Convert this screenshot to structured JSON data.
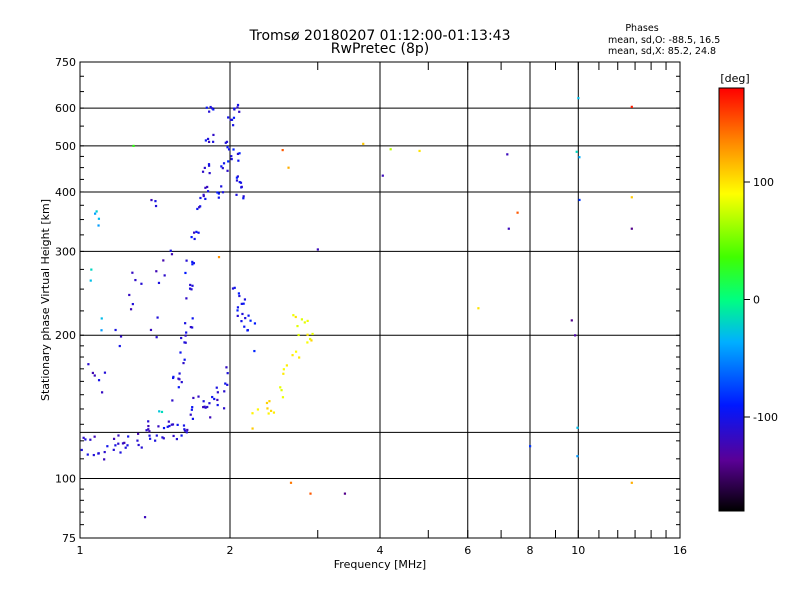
{
  "chart_data": {
    "type": "scatter",
    "title": "Tromsø 20180207 01:12:00-01:13:43",
    "subtitle": "RwPretec (8p)",
    "xlabel": "Frequency [MHz]",
    "ylabel": "Stationary phase Virtual Height [km]",
    "xscale": "log",
    "yscale": "log",
    "xlim": [
      1,
      16
    ],
    "ylim": [
      75,
      750
    ],
    "xticks": [
      1,
      2,
      4,
      6,
      8,
      10,
      16
    ],
    "xtick_labels": [
      "1",
      "2",
      "4",
      "6",
      "8",
      "10",
      "16"
    ],
    "yticks": [
      75,
      100,
      200,
      300,
      400,
      500,
      600,
      750
    ],
    "ytick_labels": [
      "75",
      "100",
      "200",
      "300",
      "400",
      "500",
      "600",
      "750"
    ],
    "ygrid": [
      100,
      125,
      200,
      300,
      400,
      500,
      600
    ],
    "xgrid": [
      2,
      4,
      6,
      8,
      10
    ],
    "stats_header": "Phases",
    "stats_o": "mean, sd,O: -88.5, 16.5",
    "stats_x": "mean, sd,X:  85.2, 24.8",
    "colorbar": {
      "label": "[deg]",
      "range": [
        -180,
        180
      ],
      "ticks": [
        100,
        0,
        -100
      ],
      "tick_labels": [
        "100",
        "0",
        "-100"
      ]
    },
    "clusters": [
      {
        "name": "blue-low-trace",
        "phase": -110,
        "count": 80,
        "points": [
          [
            1.0,
            118
          ],
          [
            1.05,
            117
          ],
          [
            1.1,
            115
          ],
          [
            1.15,
            118
          ],
          [
            1.2,
            120
          ],
          [
            1.25,
            122
          ],
          [
            1.3,
            121
          ],
          [
            1.35,
            124
          ],
          [
            1.4,
            122
          ],
          [
            1.45,
            123
          ],
          [
            1.5,
            126
          ],
          [
            1.55,
            127
          ],
          [
            1.6,
            129
          ],
          [
            1.65,
            133
          ],
          [
            1.7,
            140
          ],
          [
            1.75,
            145
          ],
          [
            1.8,
            142
          ],
          [
            1.85,
            150
          ],
          [
            1.9,
            148
          ],
          [
            1.95,
            165
          ]
        ],
        "spread_x": 0.05,
        "spread_y": 8
      },
      {
        "name": "blue-e-region-rise",
        "phase": -105,
        "count": 60,
        "points": [
          [
            1.55,
            155
          ],
          [
            1.6,
            170
          ],
          [
            1.62,
            190
          ],
          [
            1.65,
            210
          ],
          [
            1.65,
            250
          ],
          [
            1.66,
            280
          ],
          [
            1.7,
            330
          ],
          [
            1.75,
            380
          ],
          [
            1.8,
            400
          ],
          [
            1.8,
            450
          ],
          [
            1.82,
            520
          ],
          [
            1.83,
            600
          ]
        ],
        "spread_x": 0.04,
        "spread_y": 12
      },
      {
        "name": "blue-f-region",
        "phase": -100,
        "count": 60,
        "points": [
          [
            1.9,
            400
          ],
          [
            1.95,
            450
          ],
          [
            2.0,
            500
          ],
          [
            2.02,
            560
          ],
          [
            2.05,
            600
          ],
          [
            2.05,
            480
          ],
          [
            2.08,
            420
          ],
          [
            2.1,
            400
          ],
          [
            2.05,
            240
          ],
          [
            2.1,
            230
          ],
          [
            2.15,
            220
          ],
          [
            2.2,
            200
          ]
        ],
        "spread_x": 0.04,
        "spread_y": 15
      },
      {
        "name": "blue-scatter-lower",
        "phase": -115,
        "count": 25,
        "points": [
          [
            1.05,
            160
          ],
          [
            1.1,
            155
          ],
          [
            1.2,
            200
          ],
          [
            1.25,
            240
          ],
          [
            1.3,
            270
          ],
          [
            1.4,
            210
          ],
          [
            1.45,
            260
          ],
          [
            1.5,
            300
          ],
          [
            1.4,
            380
          ]
        ],
        "spread_x": 0.05,
        "spread_y": 15
      },
      {
        "name": "yellow-trace",
        "phase": 95,
        "count": 30,
        "points": [
          [
            2.25,
            135
          ],
          [
            2.35,
            140
          ],
          [
            2.45,
            145
          ],
          [
            2.55,
            150
          ],
          [
            2.6,
            170
          ],
          [
            2.7,
            185
          ],
          [
            2.8,
            200
          ],
          [
            2.85,
            210
          ],
          [
            2.9,
            195
          ],
          [
            2.7,
            215
          ]
        ],
        "spread_x": 0.05,
        "spread_y": 8
      },
      {
        "name": "cyan-scatter",
        "phase": -30,
        "count": 12,
        "points": [
          [
            1.05,
            270
          ],
          [
            1.08,
            370
          ],
          [
            1.1,
            350
          ],
          [
            1.1,
            210
          ],
          [
            10.0,
            480
          ],
          [
            10.0,
            120
          ],
          [
            1.45,
            140
          ]
        ],
        "spread_x": 0.02,
        "spread_y": 10
      }
    ],
    "isolated_points": [
      {
        "x": 1.28,
        "y": 500,
        "phase": 30
      },
      {
        "x": 1.35,
        "y": 83,
        "phase": -120
      },
      {
        "x": 1.9,
        "y": 292,
        "phase": 130
      },
      {
        "x": 2.55,
        "y": 490,
        "phase": 150
      },
      {
        "x": 2.62,
        "y": 450,
        "phase": 120
      },
      {
        "x": 2.65,
        "y": 98,
        "phase": 140
      },
      {
        "x": 2.9,
        "y": 93,
        "phase": 150
      },
      {
        "x": 3.0,
        "y": 303,
        "phase": -120
      },
      {
        "x": 3.4,
        "y": 93,
        "phase": -140
      },
      {
        "x": 3.7,
        "y": 505,
        "phase": 110
      },
      {
        "x": 4.05,
        "y": 433,
        "phase": -120
      },
      {
        "x": 4.2,
        "y": 492,
        "phase": 70
      },
      {
        "x": 4.8,
        "y": 488,
        "phase": 100
      },
      {
        "x": 6.3,
        "y": 228,
        "phase": 100
      },
      {
        "x": 7.2,
        "y": 480,
        "phase": -120
      },
      {
        "x": 7.25,
        "y": 335,
        "phase": -120
      },
      {
        "x": 7.55,
        "y": 362,
        "phase": 150
      },
      {
        "x": 8.0,
        "y": 117,
        "phase": -80
      },
      {
        "x": 9.7,
        "y": 215,
        "phase": -140
      },
      {
        "x": 9.85,
        "y": 200,
        "phase": -130
      },
      {
        "x": 10.0,
        "y": 630,
        "phase": -30
      },
      {
        "x": 10.05,
        "y": 385,
        "phase": -80
      },
      {
        "x": 12.8,
        "y": 604,
        "phase": 170
      },
      {
        "x": 12.8,
        "y": 390,
        "phase": 110
      },
      {
        "x": 12.8,
        "y": 335,
        "phase": -140
      },
      {
        "x": 12.8,
        "y": 98,
        "phase": 120
      }
    ]
  }
}
